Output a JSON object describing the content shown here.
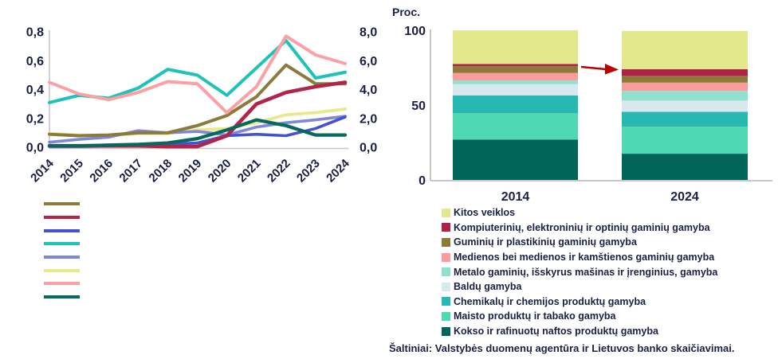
{
  "footer": "Šaltiniai: Valstybės duomenų agentūra ir Lietuvos banko skaičiavimai.",
  "text_color": "#1A2044",
  "axis_color": "#C6C6C6",
  "chart_data": [
    {
      "type": "line",
      "title": "",
      "x": [
        "2014",
        "2015",
        "2016",
        "2017",
        "2018",
        "2019",
        "2020",
        "2021",
        "2022",
        "2023",
        "2024"
      ],
      "left_axis": {
        "ticks": [
          "0,8",
          "0,6",
          "0,4",
          "0,2",
          "0,0"
        ],
        "range": [
          0,
          0.8
        ]
      },
      "right_axis": {
        "ticks": [
          "8,0",
          "6,0",
          "4,0",
          "2,0",
          "0,0"
        ],
        "range": [
          0,
          8.0
        ]
      },
      "grid": false,
      "legend_position": "below-left, swatches only (no visible labels)",
      "series": [
        {
          "name": "olive",
          "color": "#8B7A3A",
          "width": 4,
          "values": [
            0.09,
            0.08,
            0.085,
            0.1,
            0.1,
            0.15,
            0.22,
            0.35,
            0.57,
            0.44,
            0.44
          ]
        },
        {
          "name": "crimson",
          "color": "#B22449",
          "width": 4.6,
          "values": [
            0.01,
            0.01,
            0.01,
            0.01,
            0.005,
            0.005,
            0.08,
            0.3,
            0.38,
            0.42,
            0.45
          ]
        },
        {
          "name": "blue",
          "color": "#4552D0",
          "width": 3.6,
          "values": [
            0.005,
            0.005,
            0.008,
            0.01,
            0.02,
            0.03,
            0.08,
            0.09,
            0.08,
            0.13,
            0.21
          ]
        },
        {
          "name": "teal",
          "color": "#1EC3B7",
          "width": 4,
          "values": [
            0.31,
            0.36,
            0.34,
            0.41,
            0.54,
            0.5,
            0.36,
            0.55,
            0.74,
            0.48,
            0.52
          ]
        },
        {
          "name": "periwinkle",
          "color": "#7E88D8",
          "width": 3.6,
          "values": [
            0.035,
            0.055,
            0.07,
            0.115,
            0.1,
            0.11,
            0.085,
            0.14,
            0.17,
            0.19,
            0.215
          ]
        },
        {
          "name": "yellow",
          "color": "#EAE88D",
          "width": 3.8,
          "values": [
            0.095,
            0.085,
            0.08,
            0.095,
            0.095,
            0.12,
            0.13,
            0.17,
            0.225,
            0.24,
            0.265
          ]
        },
        {
          "name": "pink",
          "color": "#FBA0A3",
          "width": 4,
          "values": [
            0.45,
            0.37,
            0.33,
            0.38,
            0.455,
            0.44,
            0.24,
            0.42,
            0.77,
            0.64,
            0.58
          ]
        },
        {
          "name": "dark-teal",
          "color": "#07685C",
          "width": 4.2,
          "values": [
            0.01,
            0.01,
            0.015,
            0.02,
            0.03,
            0.06,
            0.12,
            0.19,
            0.15,
            0.085,
            0.085
          ]
        }
      ],
      "draw_order": [
        5,
        4,
        2,
        0,
        3,
        6,
        1,
        7
      ]
    },
    {
      "type": "stacked-bar",
      "title": "",
      "ylabel": "Proc.",
      "y_ticks": [
        {
          "label": "100",
          "value": 100
        },
        {
          "label": "50",
          "value": 50
        },
        {
          "label": "0",
          "value": 0
        }
      ],
      "ylim": [
        0,
        100
      ],
      "categories": [
        "2014",
        "2024"
      ],
      "series_bottom_to_top": [
        {
          "name": "kokso",
          "label": "Kokso ir rafinuotų naftos produktų gamyba",
          "color": "#02655A",
          "values": [
            27,
            17.5
          ]
        },
        {
          "name": "maisto",
          "label": "Maisto produktų ir tabako gamyba",
          "color": "#4FD9B2",
          "values": [
            17.5,
            18
          ]
        },
        {
          "name": "chemikalu",
          "label": "Chemikalų ir chemijos produktų gamyba",
          "color": "#27B8B2",
          "values": [
            12,
            10
          ]
        },
        {
          "name": "baldu",
          "label": "Baldų gamyba",
          "color": "#D8E9ED",
          "values": [
            7.5,
            7.5
          ]
        },
        {
          "name": "metalo",
          "label": "Metalo gaminių, išskyrus mašinas ir įrenginius, gamyba",
          "color": "#8FE0CC",
          "values": [
            2.5,
            6.5
          ]
        },
        {
          "name": "medienos",
          "label": "Medienos bei medienos ir kamštienos gaminių gamyba",
          "color": "#FB9C9C",
          "values": [
            5,
            5.5
          ]
        },
        {
          "name": "guminiu",
          "label": "Guminių ir plastikinių gaminių gamyba",
          "color": "#8B7A3A",
          "values": [
            4.5,
            4.5
          ]
        },
        {
          "name": "kompiuteriniu",
          "label": "Kompiuterinių, elektroninių ir optinių gaminių gamyba",
          "color": "#B02346",
          "values": [
            1.5,
            4.5
          ]
        },
        {
          "name": "kitos",
          "label": "Kitos veiklos",
          "color": "#E4E88C",
          "values": [
            22.5,
            25.5
          ]
        }
      ],
      "legend_position": "below, top-to-bottom reverse of stack order",
      "annotation_arrow": {
        "color": "#C00000",
        "meaning": "points from 2014 bar to 2024 bar"
      }
    }
  ]
}
